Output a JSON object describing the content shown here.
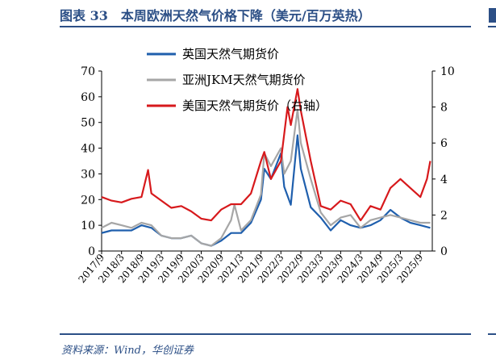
{
  "header": {
    "title": "图表 33　本周欧洲天然气价格下降（美元/百万英热）"
  },
  "footer": {
    "source": "资料来源：Wind，华创证券"
  },
  "chart_data": {
    "type": "line",
    "title": "图表 33　本周欧洲天然气价格下降（美元/百万英热）",
    "xlabel": "",
    "ylabel": "",
    "ylim": [
      0,
      70
    ],
    "y2lim": [
      0,
      10
    ],
    "yticks": [
      0,
      10,
      20,
      30,
      40,
      50,
      60,
      70
    ],
    "y2ticks": [
      0,
      2,
      4,
      6,
      8,
      10
    ],
    "x_tick_labels": [
      "2017/9",
      "2018/3",
      "2018/9",
      "2019/3",
      "2019/9",
      "2020/3",
      "2020/9",
      "2021/3",
      "2021/9",
      "2022/3",
      "2022/9",
      "2023/3",
      "2023/9",
      "2024/3",
      "2024/9",
      "2025/3",
      "2025/9"
    ],
    "legend_position": "top",
    "grid": false,
    "series": [
      {
        "name": "英国天然气期货价",
        "axis": "left",
        "color": "#1f5fad",
        "x": [
          "2017/9",
          "2017/12",
          "2018/3",
          "2018/6",
          "2018/9",
          "2018/12",
          "2019/3",
          "2019/6",
          "2019/9",
          "2019/12",
          "2020/3",
          "2020/6",
          "2020/9",
          "2020/12",
          "2021/3",
          "2021/6",
          "2021/9",
          "2021/10",
          "2021/12",
          "2022/3",
          "2022/4",
          "2022/6",
          "2022/8",
          "2022/9",
          "2022/12",
          "2023/3",
          "2023/6",
          "2023/9",
          "2023/12",
          "2024/3",
          "2024/6",
          "2024/9",
          "2024/12",
          "2025/3",
          "2025/6",
          "2025/9",
          "2025/12"
        ],
        "values": [
          7,
          8,
          8,
          8,
          10,
          9,
          6,
          5,
          5,
          6,
          3,
          2,
          4,
          7,
          7,
          11,
          20,
          32,
          28,
          38,
          25,
          18,
          45,
          32,
          17,
          13,
          8,
          12,
          10,
          9,
          10,
          12,
          16,
          13,
          11,
          10,
          9
        ]
      },
      {
        "name": "亚洲JKM天然气期货价",
        "axis": "left",
        "color": "#a6a6a6",
        "x": [
          "2017/9",
          "2017/12",
          "2018/3",
          "2018/6",
          "2018/9",
          "2018/12",
          "2019/3",
          "2019/6",
          "2019/9",
          "2019/12",
          "2020/3",
          "2020/6",
          "2020/9",
          "2020/12",
          "2021/1",
          "2021/3",
          "2021/6",
          "2021/9",
          "2021/10",
          "2021/12",
          "2022/3",
          "2022/4",
          "2022/6",
          "2022/8",
          "2022/9",
          "2022/12",
          "2023/3",
          "2023/6",
          "2023/9",
          "2023/12",
          "2024/3",
          "2024/6",
          "2024/9",
          "2024/12",
          "2025/3",
          "2025/6",
          "2025/9",
          "2025/12"
        ],
        "values": [
          9,
          11,
          10,
          9,
          11,
          10,
          6,
          5,
          5,
          6,
          3,
          2,
          5,
          12,
          18,
          8,
          12,
          22,
          38,
          33,
          40,
          30,
          35,
          55,
          42,
          28,
          15,
          10,
          13,
          14,
          9,
          12,
          13,
          14,
          13,
          12,
          11,
          11
        ]
      },
      {
        "name": "美国天然气期货价（右轴）",
        "axis": "right",
        "color": "#d7191c",
        "x": [
          "2017/9",
          "2017/12",
          "2018/3",
          "2018/6",
          "2018/9",
          "2018/11",
          "2018/12",
          "2019/3",
          "2019/6",
          "2019/9",
          "2019/12",
          "2020/3",
          "2020/6",
          "2020/9",
          "2020/12",
          "2021/3",
          "2021/6",
          "2021/9",
          "2021/10",
          "2021/12",
          "2022/3",
          "2022/5",
          "2022/6",
          "2022/8",
          "2022/9",
          "2022/12",
          "2023/3",
          "2023/6",
          "2023/9",
          "2023/12",
          "2024/3",
          "2024/6",
          "2024/9",
          "2024/12",
          "2025/3",
          "2025/6",
          "2025/9",
          "2025/11",
          "2025/12"
        ],
        "values": [
          3.0,
          2.8,
          2.7,
          2.9,
          3.0,
          4.5,
          3.2,
          2.8,
          2.4,
          2.5,
          2.2,
          1.8,
          1.7,
          2.3,
          2.6,
          2.6,
          3.2,
          5.0,
          5.5,
          4.0,
          5.0,
          8.0,
          7.0,
          9.0,
          7.8,
          5.0,
          2.5,
          2.3,
          2.8,
          2.6,
          1.7,
          2.5,
          2.3,
          3.5,
          4.0,
          3.5,
          3.0,
          4.0,
          5.0
        ]
      }
    ]
  }
}
